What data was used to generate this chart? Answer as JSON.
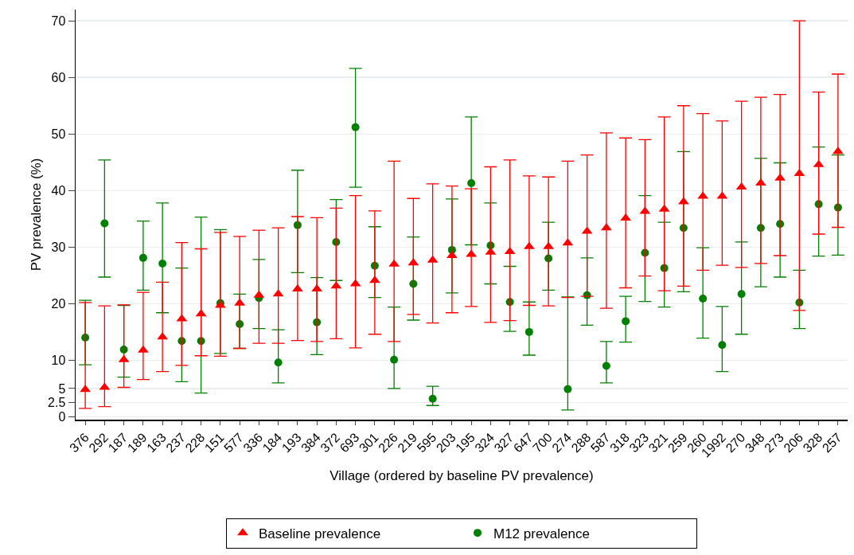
{
  "chart_data": {
    "type": "scatter",
    "xlabel": "Village (ordered by baseline PV prevalence)",
    "ylabel": "PV prevalence (%)",
    "categories": [
      "376",
      "292",
      "187",
      "189",
      "163",
      "237",
      "228",
      "151",
      "577",
      "336",
      "184",
      "193",
      "384",
      "372",
      "693",
      "301",
      "226",
      "219",
      "595",
      "203",
      "195",
      "324",
      "327",
      "647",
      "700",
      "274",
      "288",
      "587",
      "318",
      "323",
      "321",
      "259",
      "260",
      "1992",
      "270",
      "348",
      "273",
      "206",
      "328",
      "257"
    ],
    "series": [
      {
        "name": "Baseline prevalence",
        "color": "#ff0000",
        "marker": "triangle",
        "values": [
          4.8,
          5.2,
          10.1,
          11.8,
          14.1,
          17.3,
          18.2,
          19.7,
          20.1,
          21.5,
          21.7,
          22.6,
          22.6,
          23.1,
          23.5,
          24.1,
          27,
          27.2,
          27.7,
          28.5,
          28.7,
          29.1,
          29.2,
          30.1,
          30.1,
          30.7,
          32.8,
          33.4,
          35.1,
          36.3,
          36.7,
          38,
          39,
          39,
          40.6,
          41.3,
          42.2,
          43,
          44.6,
          46.9
        ],
        "errors": [
          [
            1.5,
            20.2
          ],
          [
            1.8,
            19.6
          ],
          [
            5.2,
            19.8
          ],
          [
            6.6,
            22
          ],
          [
            8,
            23.8
          ],
          [
            9.1,
            30.8
          ],
          [
            10.8,
            29.7
          ],
          [
            10.7,
            32.6
          ],
          [
            12.1,
            31.9
          ],
          [
            13,
            33
          ],
          [
            13,
            33.4
          ],
          [
            13.5,
            35.4
          ],
          [
            13.3,
            35.2
          ],
          [
            13.8,
            36.9
          ],
          [
            12.2,
            39.1
          ],
          [
            14.6,
            36.4
          ],
          [
            13.3,
            45.2
          ],
          [
            18.1,
            38.6
          ],
          [
            16.6,
            41.2
          ],
          [
            18.4,
            40.8
          ],
          [
            19.5,
            40.3
          ],
          [
            16.7,
            44.2
          ],
          [
            17,
            45.4
          ],
          [
            19.7,
            42.6
          ],
          [
            19.6,
            42.4
          ],
          [
            21.1,
            45.2
          ],
          [
            21.3,
            46.3
          ],
          [
            19.2,
            50.2
          ],
          [
            22.8,
            49.3
          ],
          [
            24.9,
            49
          ],
          [
            22.3,
            53
          ],
          [
            23.1,
            55
          ],
          [
            25.9,
            53.6
          ],
          [
            26.8,
            52.3
          ],
          [
            26.4,
            55.8
          ],
          [
            27.1,
            56.5
          ],
          [
            28.5,
            57
          ],
          [
            18.8,
            70
          ],
          [
            32.3,
            57.4
          ],
          [
            33.5,
            60.6
          ]
        ]
      },
      {
        "name": "M12 prevalence",
        "color": "#008000",
        "marker": "circle",
        "values": [
          14,
          34.2,
          11.9,
          28.1,
          27.1,
          13.4,
          13.4,
          20.1,
          16.4,
          21,
          9.6,
          33.9,
          16.7,
          30.9,
          51.2,
          26.7,
          10.1,
          23.5,
          3.2,
          29.5,
          41.3,
          30.3,
          20.3,
          15,
          28,
          4.9,
          21.5,
          9,
          16.9,
          29,
          26.3,
          33.4,
          20.9,
          12.7,
          21.7,
          33.4,
          34.1,
          20.2,
          37.6,
          37
        ],
        "errors": [
          [
            9.2,
            20.6
          ],
          [
            24.7,
            45.4
          ],
          [
            7,
            19.7
          ],
          [
            22.4,
            34.6
          ],
          [
            18.4,
            37.8
          ],
          [
            6.2,
            26.3
          ],
          [
            4.2,
            35.3
          ],
          [
            11.2,
            33.1
          ],
          [
            12.1,
            21.7
          ],
          [
            15.6,
            27.8
          ],
          [
            6,
            15.4
          ],
          [
            25.5,
            43.6
          ],
          [
            11,
            24.6
          ],
          [
            24.1,
            38.4
          ],
          [
            40.6,
            61.6
          ],
          [
            21.1,
            33.6
          ],
          [
            5,
            19.4
          ],
          [
            17.1,
            31.8
          ],
          [
            2,
            5.4
          ],
          [
            21.9,
            38.5
          ],
          [
            30.4,
            53
          ],
          [
            23.5,
            37.8
          ],
          [
            15.1,
            26.6
          ],
          [
            10.9,
            20.3
          ],
          [
            22.4,
            34.4
          ],
          [
            1.2,
            21.2
          ],
          [
            16.2,
            28.1
          ],
          [
            6,
            13.3
          ],
          [
            13.2,
            21.3
          ],
          [
            20.4,
            39.1
          ],
          [
            19.4,
            34.4
          ],
          [
            22.1,
            46.9
          ],
          [
            13.9,
            29.9
          ],
          [
            8,
            19.5
          ],
          [
            14.6,
            30.9
          ],
          [
            23,
            45.7
          ],
          [
            24.7,
            44.9
          ],
          [
            15.6,
            25.9
          ],
          [
            28.4,
            47.7
          ],
          [
            28.6,
            46.3
          ]
        ]
      }
    ],
    "ylim": [
      -0.5,
      72
    ],
    "yticks": [
      0,
      2.5,
      5,
      10,
      20,
      30,
      40,
      50,
      60,
      70
    ],
    "grid": "y",
    "legend": "bottom"
  }
}
